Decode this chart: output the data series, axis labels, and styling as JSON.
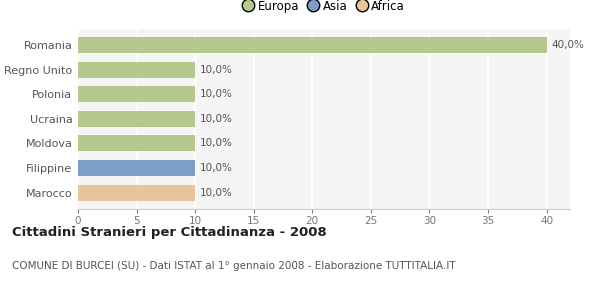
{
  "categories": [
    "Marocco",
    "Filippine",
    "Moldova",
    "Ucraina",
    "Polonia",
    "Regno Unito",
    "Romania"
  ],
  "values": [
    10.0,
    10.0,
    10.0,
    10.0,
    10.0,
    10.0,
    40.0
  ],
  "colors": [
    "#e8c49a",
    "#7b9fc7",
    "#b5c98e",
    "#b5c98e",
    "#b5c98e",
    "#b5c98e",
    "#b5c98e"
  ],
  "bar_labels": [
    "10,0%",
    "10,0%",
    "10,0%",
    "10,0%",
    "10,0%",
    "10,0%",
    "40,0%"
  ],
  "xlim": [
    0,
    42
  ],
  "xticks": [
    0,
    5,
    10,
    15,
    20,
    25,
    30,
    35,
    40
  ],
  "legend_labels": [
    "Europa",
    "Asia",
    "Africa"
  ],
  "legend_colors": [
    "#b5c98e",
    "#7b9fc7",
    "#e8c49a"
  ],
  "title": "Cittadini Stranieri per Cittadinanza - 2008",
  "subtitle": "COMUNE DI BURCEI (SU) - Dati ISTAT al 1° gennaio 2008 - Elaborazione TUTTITALIA.IT",
  "bg_color": "#ffffff",
  "plot_bg_color": "#f5f5f5",
  "grid_color": "#ffffff",
  "bar_height": 0.65,
  "label_fontsize": 7.5,
  "title_fontsize": 9.5,
  "subtitle_fontsize": 7.5,
  "ytick_fontsize": 8,
  "xtick_fontsize": 7.5,
  "legend_fontsize": 8.5
}
